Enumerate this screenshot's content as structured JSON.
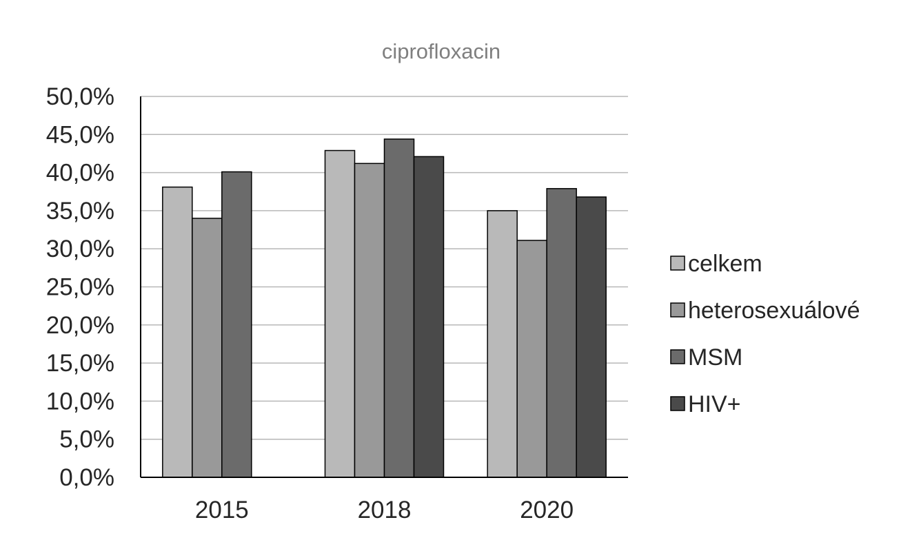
{
  "chart_data": {
    "type": "bar",
    "title": "ciprofloxacin",
    "xlabel": "",
    "ylabel": "",
    "categories": [
      "2015",
      "2018",
      "2020"
    ],
    "ylim": [
      0,
      50
    ],
    "yticks": [
      0,
      5,
      10,
      15,
      20,
      25,
      30,
      35,
      40,
      45,
      50
    ],
    "ytick_labels": [
      "0,0%",
      "5,0%",
      "10,0%",
      "15,0%",
      "20,0%",
      "25,0%",
      "30,0%",
      "35,0%",
      "40,0%",
      "45,0%",
      "50,0%"
    ],
    "grid": true,
    "legend_position": "right",
    "series": [
      {
        "name": "celkem",
        "color": "#b9b9b9",
        "values": [
          38.1,
          42.9,
          35.0
        ]
      },
      {
        "name": "heterosexuálové",
        "color": "#999999",
        "values": [
          34.0,
          41.2,
          31.1
        ]
      },
      {
        "name": "MSM",
        "color": "#6b6b6b",
        "values": [
          40.1,
          44.4,
          37.9
        ]
      },
      {
        "name": "HIV+",
        "color": "#4a4a4a",
        "values": [
          null,
          42.1,
          36.8
        ]
      }
    ]
  }
}
